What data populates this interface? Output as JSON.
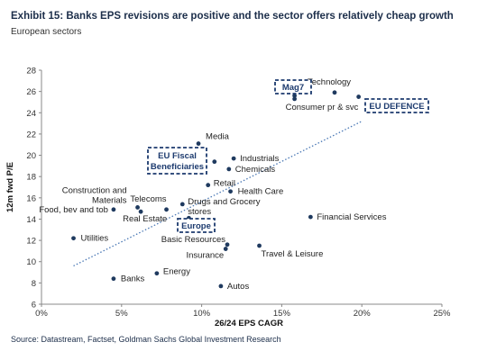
{
  "header": {
    "title": "Exhibit 15: Banks EPS revisions are positive and the sector offers relatively cheap growth",
    "subtitle": "European sectors"
  },
  "footer": {
    "source": "Source: Datastream, Factset, Goldman Sachs Global Investment Research"
  },
  "colors": {
    "point": "#1f3a5f",
    "trend": "#4a78b5",
    "box_border": "#1c3a6e",
    "title": "#1c2e4a"
  },
  "chart_data": {
    "type": "scatter",
    "xlabel": "26/24 EPS CAGR",
    "ylabel": "12m fwd P/E",
    "xlim": [
      0,
      25
    ],
    "ylim": [
      6,
      28
    ],
    "x_ticks": [
      0,
      5,
      10,
      15,
      20,
      25
    ],
    "x_tick_labels": [
      "0%",
      "5%",
      "10%",
      "15%",
      "20%",
      "25%"
    ],
    "y_ticks": [
      6,
      8,
      10,
      12,
      14,
      16,
      18,
      20,
      22,
      24,
      26,
      28
    ],
    "y_tick_labels": [
      "6",
      "8",
      "10",
      "12",
      "14",
      "16",
      "18",
      "20",
      "22",
      "24",
      "26",
      "28"
    ],
    "grid": false,
    "trendline": {
      "x": [
        2,
        20
      ],
      "y": [
        9.6,
        23.2
      ],
      "style": "dotted"
    },
    "points": [
      {
        "label": "Technology",
        "x": 18.3,
        "y": 25.9
      },
      {
        "label": "Mag7",
        "x": 15.8,
        "y": 25.6
      },
      {
        "label": "Consumer pr & svc",
        "x": 15.8,
        "y": 25.3
      },
      {
        "label": "EU DEFENCE",
        "x": 19.8,
        "y": 25.5
      },
      {
        "label": "Media",
        "x": 9.8,
        "y": 21.1
      },
      {
        "label": "EU Fiscal Beneficiaries",
        "x": 10.8,
        "y": 19.4
      },
      {
        "label": "Industrials",
        "x": 12.0,
        "y": 19.7
      },
      {
        "label": "Chemicals",
        "x": 11.7,
        "y": 18.7
      },
      {
        "label": "Retail",
        "x": 10.4,
        "y": 17.2
      },
      {
        "label": "Health Care",
        "x": 11.8,
        "y": 16.6
      },
      {
        "label": "Construction and Materials",
        "x": 6.0,
        "y": 15.1
      },
      {
        "label": "Telecoms",
        "x": 7.8,
        "y": 14.9
      },
      {
        "label": "Drugs and Grocery stores",
        "x": 8.8,
        "y": 15.4
      },
      {
        "label": "Food, bev and tob",
        "x": 4.5,
        "y": 14.9
      },
      {
        "label": "Real Estate",
        "x": 6.2,
        "y": 14.7
      },
      {
        "label": "Europe",
        "x": 9.2,
        "y": 14.1
      },
      {
        "label": "Financial Services",
        "x": 16.8,
        "y": 14.2
      },
      {
        "label": "Utilities",
        "x": 2.0,
        "y": 12.2
      },
      {
        "label": "Basic Resources",
        "x": 11.6,
        "y": 11.6
      },
      {
        "label": "Insurance",
        "x": 11.5,
        "y": 11.2
      },
      {
        "label": "Travel & Leisure",
        "x": 13.6,
        "y": 11.5
      },
      {
        "label": "Energy",
        "x": 7.2,
        "y": 8.9
      },
      {
        "label": "Banks",
        "x": 4.5,
        "y": 8.4
      },
      {
        "label": "Autos",
        "x": 11.2,
        "y": 7.7
      }
    ],
    "highlight_boxes": [
      "Mag7",
      "EU DEFENCE",
      "EU Fiscal Beneficiaries",
      "Europe"
    ]
  }
}
